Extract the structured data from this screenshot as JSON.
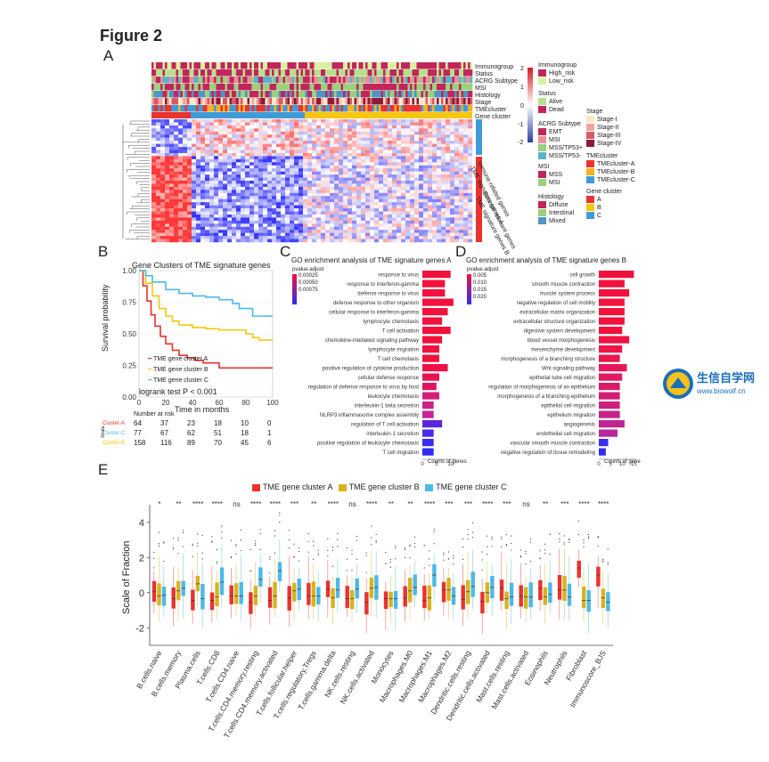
{
  "figure_title": "Figure 2",
  "panels": {
    "a": "A",
    "b": "B",
    "c": "C",
    "d": "D",
    "e": "E"
  },
  "heatmap": {
    "annotation_tracks": [
      "Immunogroup",
      "Status",
      "ACRG Subtype",
      "MSI",
      "Histology",
      "Stage",
      "TMEcluster",
      "Gene cluster"
    ],
    "row_groups": [
      "Immune related genes",
      "TME signature genes A",
      "Stromal relevant genes",
      "TME signature genes B"
    ],
    "scale_ticks": [
      "2",
      "1",
      "0",
      "-1",
      "-2"
    ],
    "legend": {
      "immunogroup": {
        "title": "Immunogroup",
        "items": [
          {
            "label": "High_risk",
            "color": "#c0265a"
          },
          {
            "label": "Low_risk",
            "color": "#d8f0a0"
          }
        ]
      },
      "status": {
        "title": "Status",
        "items": [
          {
            "label": "Alive",
            "color": "#b8e08c"
          },
          {
            "label": "Dead",
            "color": "#c0265a"
          }
        ]
      },
      "acrg": {
        "title": "ACRG Subtype",
        "items": [
          {
            "label": "EMT",
            "color": "#c0265a"
          },
          {
            "label": "MSI",
            "color": "#e89098"
          },
          {
            "label": "MSS/TP53+",
            "color": "#9bd07c"
          },
          {
            "label": "MSS/TP53-",
            "color": "#59b2cc"
          }
        ]
      },
      "msi": {
        "title": "MSI",
        "items": [
          {
            "label": "MSS",
            "color": "#c0265a"
          },
          {
            "label": "MSI",
            "color": "#9bd07c"
          }
        ]
      },
      "histology": {
        "title": "Histology",
        "items": [
          {
            "label": "Diffuse",
            "color": "#c0265a"
          },
          {
            "label": "Intestinal",
            "color": "#9bd07c"
          },
          {
            "label": "Mixed",
            "color": "#4d94c8"
          }
        ]
      },
      "stage": {
        "title": "Stage",
        "items": [
          {
            "label": "Stage-I",
            "color": "#fbe8c8"
          },
          {
            "label": "Stage-II",
            "color": "#f2a5a0"
          },
          {
            "label": "Stage-III",
            "color": "#d95a66"
          },
          {
            "label": "Stage-IV",
            "color": "#8b1a3a"
          }
        ]
      },
      "tmecluster": {
        "title": "TMEcluster",
        "items": [
          {
            "label": "TMEcluster-A",
            "color": "#e8332f"
          },
          {
            "label": "TMEcluster-B",
            "color": "#f4b120"
          },
          {
            "label": "TMEcluster-C",
            "color": "#3f9bd8"
          }
        ]
      },
      "genecluster": {
        "title": "Gene cluster",
        "items": [
          {
            "label": "A",
            "color": "#e8332f"
          },
          {
            "label": "B",
            "color": "#f4c710"
          },
          {
            "label": "C",
            "color": "#3f9bd8"
          }
        ]
      }
    }
  },
  "chart_data": [
    {
      "id": "B",
      "type": "line",
      "title": "Gene Clusters of TME signature genes",
      "xlabel": "Time in months",
      "ylabel": "Survival probability",
      "xlim": [
        0,
        100
      ],
      "ylim": [
        0,
        1
      ],
      "xticks": [
        "0",
        "20",
        "40",
        "60",
        "80",
        "100"
      ],
      "yticks": [
        "0.00",
        "0.25",
        "0.50",
        "0.75",
        "1.00"
      ],
      "series": [
        {
          "name": "TME gene cluster A",
          "color": "#e8332f",
          "x": [
            0,
            3,
            6,
            9,
            12,
            16,
            20,
            25,
            30,
            36,
            42,
            48,
            54,
            60,
            70,
            80,
            90,
            100
          ],
          "y": [
            1.0,
            0.88,
            0.76,
            0.65,
            0.56,
            0.48,
            0.42,
            0.37,
            0.33,
            0.31,
            0.29,
            0.27,
            0.27,
            0.23,
            0.23,
            0.23,
            0.23,
            0.23
          ]
        },
        {
          "name": "TME gene cluster B",
          "color": "#f4c710",
          "x": [
            0,
            5,
            10,
            15,
            20,
            25,
            30,
            40,
            50,
            60,
            70,
            80,
            85,
            90,
            100
          ],
          "y": [
            1.0,
            0.9,
            0.8,
            0.7,
            0.64,
            0.6,
            0.57,
            0.55,
            0.54,
            0.53,
            0.53,
            0.5,
            0.47,
            0.45,
            0.45
          ]
        },
        {
          "name": "TME gene cluster C",
          "color": "#4fb8e8",
          "x": [
            0,
            5,
            10,
            20,
            30,
            40,
            50,
            60,
            70,
            75,
            80,
            85,
            90,
            100
          ],
          "y": [
            1.0,
            0.96,
            0.91,
            0.85,
            0.82,
            0.8,
            0.79,
            0.77,
            0.74,
            0.7,
            0.7,
            0.64,
            0.64,
            0.64
          ]
        }
      ],
      "legend": [
        "TME gene cluster A",
        "TME gene cluster B",
        "TME gene cluster C"
      ],
      "annotation": "logrank test P < 0.001",
      "risk_table": {
        "title": "Number at risk",
        "strata_label": "Strata",
        "rows": [
          {
            "label": "Cluster-A",
            "color": "#e8332f",
            "values": [
              "64",
              "37",
              "23",
              "18",
              "10",
              "0"
            ]
          },
          {
            "label": "Cluster-C",
            "color": "#4fb8e8",
            "values": [
              "77",
              "67",
              "62",
              "51",
              "18",
              "1"
            ]
          },
          {
            "label": "Cluster-B",
            "color": "#f4c710",
            "values": [
              "158",
              "116",
              "89",
              "70",
              "45",
              "6"
            ]
          }
        ]
      }
    },
    {
      "id": "C",
      "type": "bar",
      "title": "GO enrichment analysis of TME signature genes A",
      "xlabel": "Counts of genes",
      "xticks": [
        "0",
        "5",
        "10"
      ],
      "colorbar_title": "pvalue.adjust",
      "colorbar_ticks": [
        "0.00025",
        "0.00050",
        "0.00075"
      ],
      "categories": [
        "response to virus",
        "response to interferon-gamma",
        "defense response to virus",
        "defense response to other organism",
        "cellular response to interferon-gamma",
        "lymphocyte chemotaxis",
        "T cell activation",
        "chemokine-mediated signaling pathway",
        "lymphocyte migration",
        "T cell chemotaxis",
        "positive regulation of cytokine production",
        "cellular defense response",
        "regulation of defense response to virus by host",
        "leukocyte chemotaxis",
        "interleukin-1 beta secretion",
        "NLRP3 inflammasome complex assembly",
        "regulation of T cell activation",
        "interleukin-1 secretion",
        "positive regulation of leukocyte chemotaxis",
        "T cell migration"
      ],
      "values": [
        10,
        8,
        8,
        11,
        9,
        7,
        10,
        7,
        6,
        6,
        9,
        6,
        5,
        6,
        4,
        4,
        7,
        4,
        4,
        4
      ],
      "colors": [
        "#f2103c",
        "#f2103c",
        "#f2103c",
        "#f2103c",
        "#f2103c",
        "#f2103c",
        "#f2103c",
        "#f2103c",
        "#f2103c",
        "#f2103c",
        "#ee1048",
        "#ea1250",
        "#e01660",
        "#d2207a",
        "#cc2288",
        "#c42494",
        "#5a28d8",
        "#4a2ae8",
        "#3a2cf0",
        "#302cf4"
      ]
    },
    {
      "id": "D",
      "type": "bar",
      "title": "GO enrichment analysis of TME signature genes B",
      "xlabel": "Counts of gene",
      "xticks": [
        "0",
        "5",
        "10",
        "15"
      ],
      "colorbar_title": "pvalue.adjust",
      "colorbar_ticks": [
        "0.005",
        "0.010",
        "0.015",
        "0.020"
      ],
      "categories": [
        "cell growth",
        "smooth muscle contraction",
        "muscle system process",
        "negative regulation of cell motility",
        "extracellular matrix organization",
        "extracellular structure organization",
        "digestive system development",
        "blood vessel morphogenesis",
        "mesenchyme development",
        "morphogenesis of a branching structure",
        "Wnt signaling pathway",
        "epithelial tube cell migration",
        "regulation of morphogenesis of an epithelium",
        "morphogenesis of a branching epithelium",
        "epithelial cell migration",
        "epithelium migration",
        "angiogenesis",
        "endothelial cell migration",
        "vascular smooth muscle contraction",
        "negative regulation of tissue remodeling"
      ],
      "values": [
        15,
        11,
        13,
        11,
        11,
        11,
        10,
        13,
        10,
        9,
        12,
        10,
        9,
        9,
        9,
        9,
        11,
        8,
        4,
        3
      ],
      "colors": [
        "#f2103c",
        "#f2103c",
        "#f2103c",
        "#f2103c",
        "#f2103c",
        "#f2103c",
        "#f2103c",
        "#f01242",
        "#ee1448",
        "#ea164e",
        "#e41858",
        "#de1a62",
        "#d81c6c",
        "#d21e76",
        "#cc2080",
        "#c6228a",
        "#c02494",
        "#b8269e",
        "#3a2cf0",
        "#302cf4"
      ]
    },
    {
      "id": "E",
      "type": "box",
      "ylabel": "Scale of Fraction",
      "ylim": [
        -3,
        5
      ],
      "yticks": [
        "-2",
        "0",
        "2",
        "4"
      ],
      "legend": [
        {
          "name": "TME gene cluster A",
          "color": "#e8332f"
        },
        {
          "name": "TME gene cluster B",
          "color": "#d6b420"
        },
        {
          "name": "TME gene cluster C",
          "color": "#4fb8e8"
        }
      ],
      "categories": [
        "B.cells.naive",
        "B.cells.memory",
        "Plasma.cells",
        "T.cells.CD8",
        "T.cells.CD4.naive",
        "T.cells.CD4.memory.resting",
        "T.cells.CD4.memory.activated",
        "T.cells.follicular.helper",
        "T.cells.regulatory.Tregs",
        "T.cells.gamma.delta",
        "NK.cells.resting",
        "NK.cells.activated",
        "Monocytes",
        "Macrophages.M0",
        "Macrophages.M1",
        "Macrophages.M2",
        "Dendritic.cells.resting",
        "Dendritic.cells.activated",
        "Mast.cells.resting",
        "Mast.cells.activated",
        "Eosinophils",
        "Neutrophils",
        "Fibroblast",
        "Immunoscore_BJS"
      ],
      "significance": [
        "*",
        "**",
        "****",
        "****",
        "ns",
        "****",
        "****",
        "***",
        "**",
        "****",
        "ns",
        "****",
        "**",
        "**",
        "****",
        "***",
        "***",
        "****",
        "***",
        "ns",
        "**",
        "***",
        "****",
        "****"
      ],
      "medians": {
        "A": [
          0.05,
          -0.35,
          -0.45,
          -0.45,
          -0.2,
          -0.55,
          -0.45,
          -0.3,
          -0.2,
          0.2,
          -0.35,
          -0.55,
          -0.35,
          -0.3,
          -0.45,
          0.15,
          -0.4,
          -0.5,
          0.25,
          -0.2,
          0.25,
          0.15,
          1.4,
          1.0
        ],
        "B": [
          -0.2,
          0.1,
          0.5,
          -0.25,
          -0.2,
          -0.2,
          -0.2,
          0.1,
          -0.2,
          -0.3,
          -0.35,
          0.25,
          -0.35,
          0.1,
          -0.3,
          0.15,
          0.05,
          0.0,
          -0.35,
          -0.25,
          -0.25,
          0.15,
          -0.45,
          -0.3
        ],
        "C": [
          -0.15,
          0.25,
          -0.35,
          0.6,
          -0.2,
          0.75,
          1.25,
          0.2,
          -0.2,
          0.15,
          0.2,
          0.3,
          -0.35,
          0.3,
          1.0,
          -0.2,
          0.35,
          0.3,
          -0.25,
          -0.25,
          -0.1,
          -0.25,
          -0.45,
          -0.55
        ]
      }
    }
  ]
}
